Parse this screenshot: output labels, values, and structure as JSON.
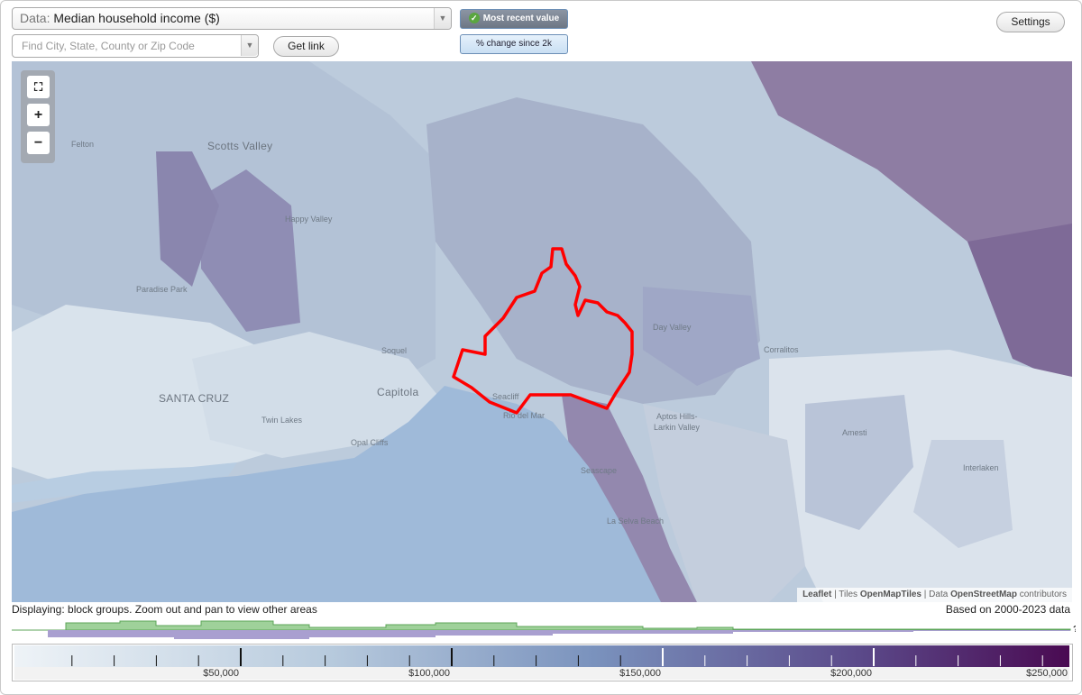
{
  "controls": {
    "data_prefix": "Data:",
    "data_value": "Median household income ($)",
    "search_placeholder": "Find City, State, County or Zip Code",
    "get_link": "Get link",
    "most_recent": "Most recent value",
    "pct_change": "% change since 2k",
    "settings": "Settings"
  },
  "map": {
    "places": [
      {
        "name": "Scotts Valley",
        "big": true
      },
      {
        "name": "Felton",
        "big": false
      },
      {
        "name": "Happy Valley",
        "big": false
      },
      {
        "name": "Paradise Park",
        "big": false
      },
      {
        "name": "SANTA CRUZ",
        "big": true
      },
      {
        "name": "Twin Lakes",
        "big": false
      },
      {
        "name": "Soquel",
        "big": false
      },
      {
        "name": "Capitola",
        "big": true
      },
      {
        "name": "Opal Cliffs",
        "big": false
      },
      {
        "name": "Seacliff",
        "big": false
      },
      {
        "name": "Rio del Mar",
        "big": false
      },
      {
        "name": "Day Valley",
        "big": false
      },
      {
        "name": "Corralitos",
        "big": false
      },
      {
        "name": "Aptos Hills-",
        "big": false
      },
      {
        "name": "Larkin Valley",
        "big": false
      },
      {
        "name": "Amesti",
        "big": false
      },
      {
        "name": "Interlaken",
        "big": false
      },
      {
        "name": "Seascape",
        "big": false
      },
      {
        "name": "La Selva Beach",
        "big": false
      }
    ],
    "attribution": {
      "leaflet": "Leaflet",
      "tiles_prefix": "Tiles",
      "tiles": "OpenMapTiles",
      "data_prefix": "Data",
      "data": "OpenStreetMap",
      "suffix": "contributors"
    },
    "colors": {
      "ocean": "#9fbad9",
      "highlight": "#ff0000",
      "scale_low": "#eef3f7",
      "scale_mid": "#7a92bd",
      "scale_high": "#4a0a52"
    }
  },
  "footer": {
    "displaying": "Displaying: block groups. Zoom out and pan to view other areas",
    "based_on": "Based on 2000-2023 data",
    "histogram_marker": "?"
  },
  "legend": {
    "min": 0,
    "max": 250000,
    "labels": [
      {
        "value": 50000,
        "text": "$50,000"
      },
      {
        "value": 100000,
        "text": "$100,000"
      },
      {
        "value": 150000,
        "text": "$150,000"
      },
      {
        "value": 200000,
        "text": "$200,000"
      },
      {
        "value": 250000,
        "text": "$250,000"
      }
    ]
  }
}
